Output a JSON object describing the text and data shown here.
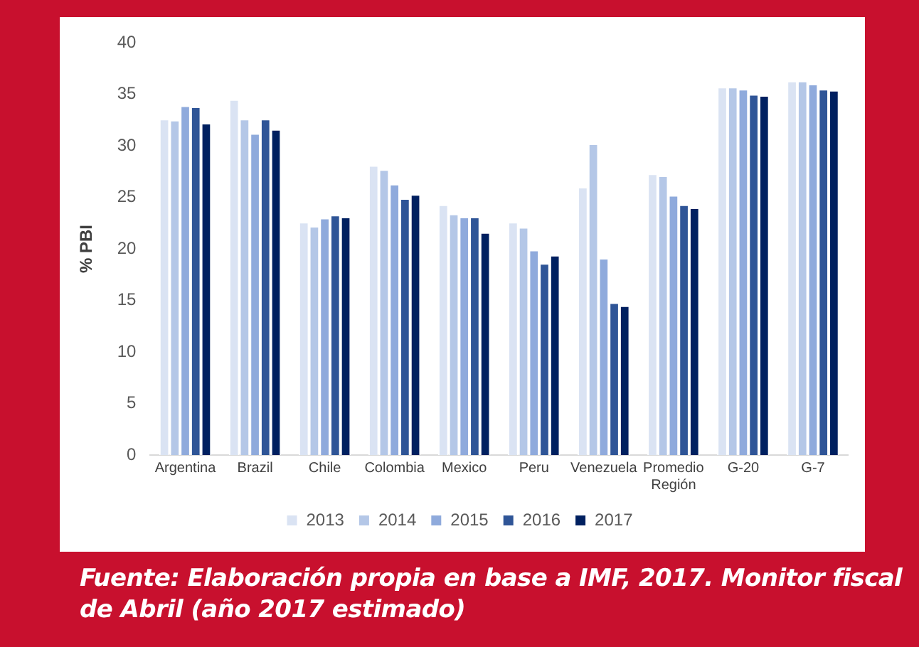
{
  "chart_data": {
    "type": "bar",
    "ylabel": "% PBI",
    "categories": [
      "Argentina",
      "Brazil",
      "Chile",
      "Colombia",
      "Mexico",
      "Peru",
      "Venezuela",
      "Promedio Región",
      "G-20",
      "G-7"
    ],
    "series": [
      {
        "name": "2013",
        "color": "#dae3f3",
        "values": [
          32.6,
          34.5,
          22.6,
          28.1,
          24.3,
          22.6,
          26.0,
          27.3,
          35.7,
          36.3
        ]
      },
      {
        "name": "2014",
        "color": "#b4c7e7",
        "values": [
          32.5,
          32.6,
          22.2,
          27.7,
          23.4,
          22.1,
          30.2,
          27.1,
          35.7,
          36.3
        ]
      },
      {
        "name": "2015",
        "color": "#8faadc",
        "values": [
          33.9,
          31.2,
          23.0,
          26.3,
          23.1,
          19.9,
          19.1,
          25.2,
          35.5,
          36.0
        ]
      },
      {
        "name": "2016",
        "color": "#2f5597",
        "values": [
          33.8,
          32.6,
          23.3,
          24.9,
          23.1,
          18.6,
          14.8,
          24.3,
          35.0,
          35.5
        ]
      },
      {
        "name": "2017",
        "color": "#002060",
        "values": [
          32.2,
          31.6,
          23.1,
          25.3,
          21.6,
          19.4,
          14.5,
          24.0,
          34.9,
          35.4
        ]
      }
    ],
    "ylim": [
      0,
      40
    ],
    "yticks": [
      0,
      5,
      10,
      15,
      20,
      25,
      30,
      35,
      40
    ],
    "grid": false,
    "legend": "bottom",
    "annotations": [
      "Fuente: Elaboración propia en base a IMF, 2017. Monitor fiscal de Abril (año 2017 estimado)"
    ]
  }
}
